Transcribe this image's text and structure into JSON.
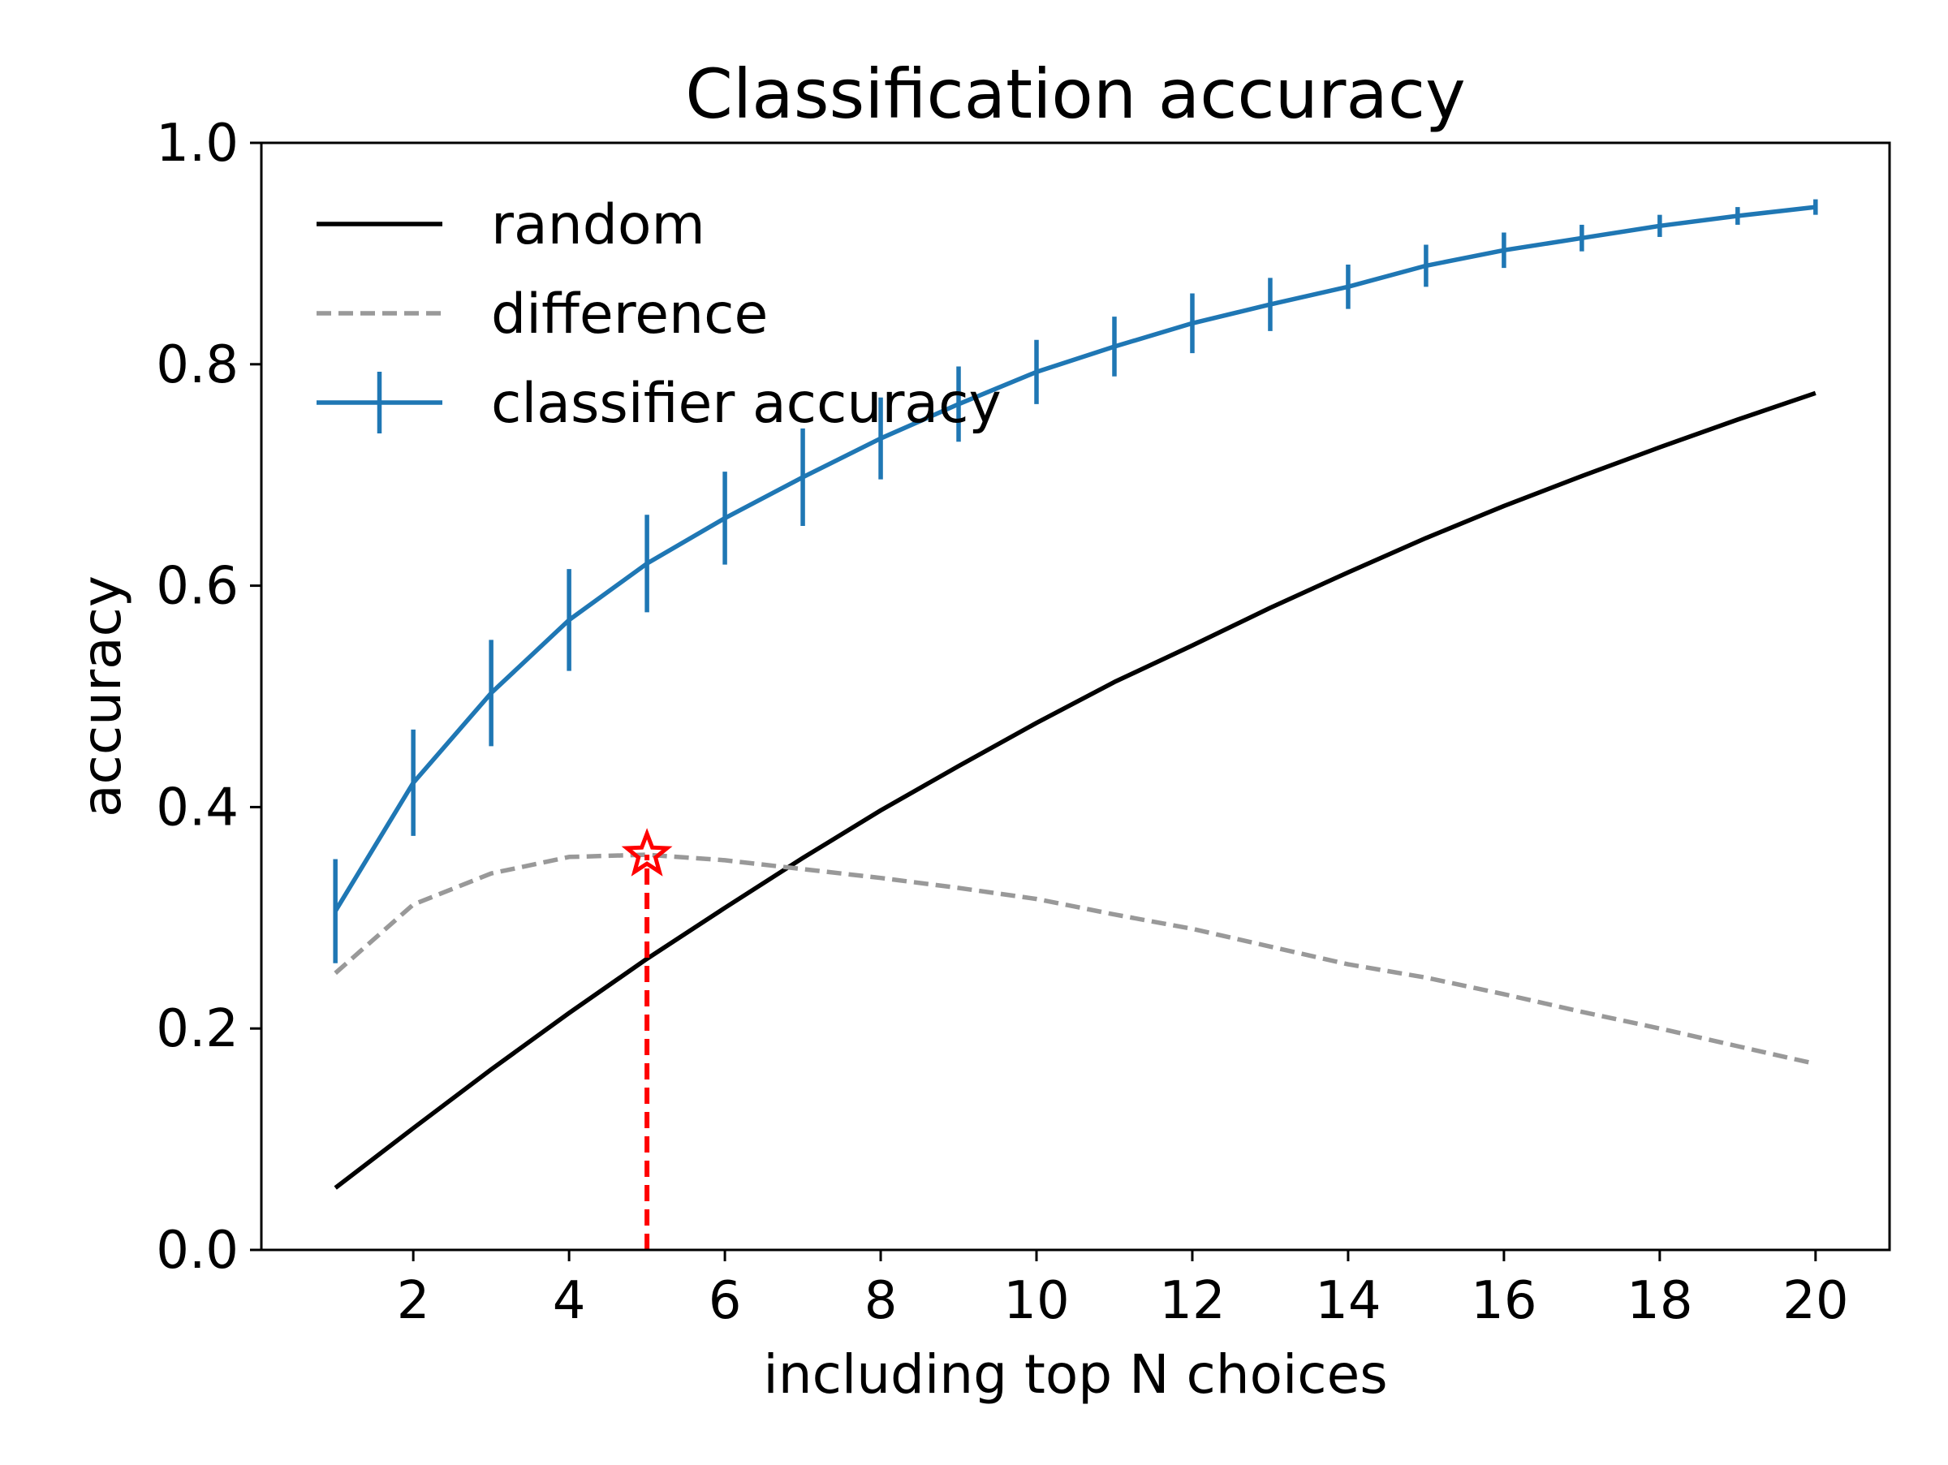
{
  "chart_data": {
    "type": "line",
    "title": "Classification accuracy",
    "xlabel": "including top N choices",
    "ylabel": "accuracy",
    "xlim": [
      0.05,
      20.95
    ],
    "ylim": [
      0.0,
      1.0
    ],
    "xticks": [
      2,
      4,
      6,
      8,
      10,
      12,
      14,
      16,
      18,
      20
    ],
    "xtick_labels": [
      "2",
      "4",
      "6",
      "8",
      "10",
      "12",
      "14",
      "16",
      "18",
      "20"
    ],
    "yticks": [
      0.0,
      0.2,
      0.4,
      0.6,
      0.8,
      1.0
    ],
    "ytick_labels": [
      "0.0",
      "0.2",
      "0.4",
      "0.6",
      "0.8",
      "1.0"
    ],
    "grid": false,
    "legend_position": "upper-left",
    "x": [
      1,
      2,
      3,
      4,
      5,
      6,
      7,
      8,
      9,
      10,
      11,
      12,
      13,
      14,
      15,
      16,
      17,
      18,
      19,
      20
    ],
    "series": [
      {
        "name": "random",
        "style": "solid",
        "color": "#000000",
        "values": [
          0.056,
          0.11,
          0.163,
          0.214,
          0.263,
          0.309,
          0.354,
          0.397,
          0.437,
          0.476,
          0.513,
          0.546,
          0.58,
          0.612,
          0.643,
          0.672,
          0.699,
          0.725,
          0.75,
          0.774
        ]
      },
      {
        "name": "difference",
        "style": "dashed",
        "color": "#999999",
        "values": [
          0.25,
          0.312,
          0.34,
          0.355,
          0.357,
          0.352,
          0.344,
          0.336,
          0.327,
          0.317,
          0.303,
          0.29,
          0.274,
          0.258,
          0.246,
          0.231,
          0.215,
          0.2,
          0.184,
          0.168
        ]
      },
      {
        "name": "classifier accuracy",
        "style": "solid",
        "color": "#1f77b4",
        "errorbars": true,
        "values": [
          0.306,
          0.422,
          0.503,
          0.569,
          0.62,
          0.661,
          0.698,
          0.733,
          0.764,
          0.793,
          0.816,
          0.837,
          0.854,
          0.87,
          0.889,
          0.903,
          0.914,
          0.925,
          0.934,
          0.942
        ],
        "errors": [
          0.047,
          0.048,
          0.048,
          0.046,
          0.044,
          0.042,
          0.044,
          0.037,
          0.034,
          0.029,
          0.027,
          0.027,
          0.024,
          0.02,
          0.019,
          0.016,
          0.012,
          0.01,
          0.008,
          0.007
        ]
      }
    ],
    "annotations": [
      {
        "type": "star-marker",
        "x": 5,
        "y": 0.357,
        "color": "#ff0000",
        "vertical_dashed_line_to": 0.0
      }
    ]
  }
}
